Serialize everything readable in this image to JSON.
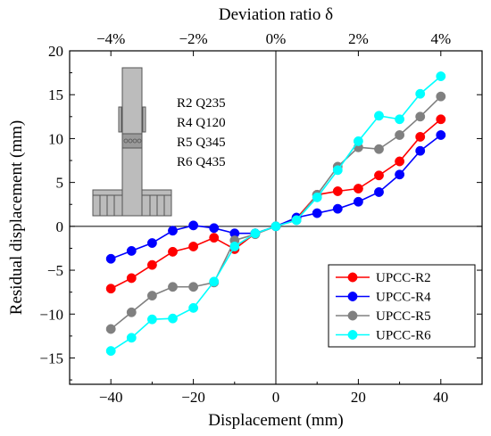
{
  "chart_data": {
    "type": "line",
    "xlabel": "Displacement (mm)",
    "ylabel": "Residual displacement (mm)",
    "top_xlabel": "Deviation ratio δ",
    "xlim": [
      -50,
      50
    ],
    "ylim": [
      -18,
      20
    ],
    "xticks": [
      -40,
      -20,
      0,
      20,
      40
    ],
    "xtick_labels": [
      "−40",
      "−20",
      "0",
      "20",
      "40"
    ],
    "yticks": [
      -15,
      -10,
      -5,
      0,
      5,
      10,
      15,
      20
    ],
    "ytick_labels": [
      "−15",
      "−10",
      "−5",
      "0",
      "5",
      "10",
      "15",
      "20"
    ],
    "top_xticks": [
      -40,
      -20,
      0,
      20,
      40
    ],
    "top_xtick_labels": [
      "−4%",
      "−2%",
      "0%",
      "2%",
      "4%"
    ],
    "grid": false,
    "legend_position": "bottom-right",
    "inset_labels": [
      "R2 Q235",
      "R4 Q120",
      "R5 Q345",
      "R6 Q435"
    ],
    "series": [
      {
        "name": "UPCC-R2",
        "color": "#ff0000",
        "x": [
          -40,
          -35,
          -30,
          -25,
          -20,
          -15,
          -10,
          -5,
          0,
          5,
          10,
          15,
          20,
          25,
          30,
          35,
          40
        ],
        "y": [
          -7.1,
          -5.9,
          -4.4,
          -2.9,
          -2.3,
          -1.3,
          -2.6,
          -0.8,
          0,
          0.9,
          3.6,
          4.0,
          4.3,
          5.8,
          7.4,
          10.2,
          12.2
        ]
      },
      {
        "name": "UPCC-R4",
        "color": "#0000ff",
        "x": [
          -40,
          -35,
          -30,
          -25,
          -20,
          -15,
          -10,
          -5,
          0,
          5,
          10,
          15,
          20,
          25,
          30,
          35,
          40
        ],
        "y": [
          -3.7,
          -2.8,
          -1.9,
          -0.5,
          0.1,
          -0.2,
          -0.8,
          -0.8,
          0,
          1.0,
          1.5,
          2.0,
          2.8,
          3.9,
          5.9,
          8.6,
          10.4
        ]
      },
      {
        "name": "UPCC-R5",
        "color": "#808080",
        "x": [
          -40,
          -35,
          -30,
          -25,
          -20,
          -15,
          -10,
          -5,
          0,
          5,
          10,
          15,
          20,
          25,
          30,
          35,
          40
        ],
        "y": [
          -11.7,
          -9.8,
          -7.9,
          -6.9,
          -6.9,
          -6.4,
          -1.6,
          -0.9,
          0,
          0.7,
          3.6,
          6.8,
          9.0,
          8.8,
          10.4,
          12.5,
          14.8
        ]
      },
      {
        "name": "UPCC-R6",
        "color": "#00ffff",
        "x": [
          -40,
          -35,
          -30,
          -25,
          -20,
          -15,
          -10,
          -5,
          0,
          5,
          10,
          15,
          20,
          25,
          30,
          35,
          40
        ],
        "y": [
          -14.2,
          -12.7,
          -10.6,
          -10.5,
          -9.3,
          -6.3,
          -2.3,
          -0.8,
          0,
          0.7,
          3.3,
          6.4,
          9.7,
          12.6,
          12.2,
          15.1,
          17.1
        ]
      }
    ]
  }
}
